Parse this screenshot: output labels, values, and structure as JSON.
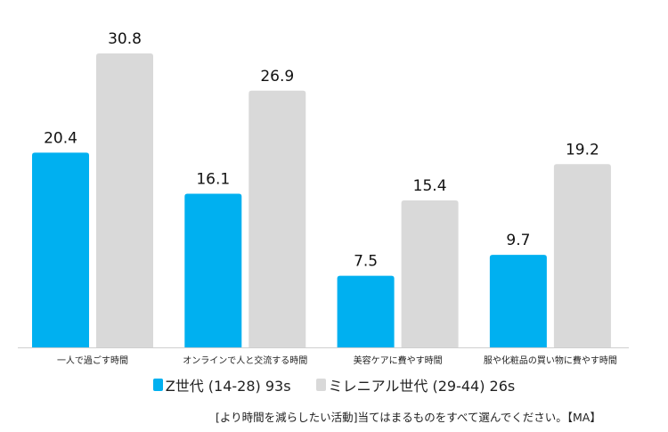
{
  "chart_data": {
    "type": "bar",
    "categories": [
      "一人で過ごす時間",
      "オンラインで人と交流する時間",
      "美容ケアに費やす時間",
      "服や化粧品の買い物に費やす時間"
    ],
    "series": [
      {
        "name": "Z世代 (14-28) 93s",
        "color": "#00b0f0",
        "values": [
          20.4,
          16.1,
          7.5,
          9.7
        ]
      },
      {
        "name": "ミレニアル世代 (29-44) 26s",
        "color": "#d9d9d9",
        "values": [
          30.8,
          26.9,
          15.4,
          19.2
        ]
      }
    ],
    "ylim": [
      0,
      30.8
    ],
    "grid": false,
    "legend_position": "bottom",
    "data_labels": true,
    "footnote": "[より時間を減らしたい活動]当てはまるものをすべて選んでください。【MA】"
  }
}
